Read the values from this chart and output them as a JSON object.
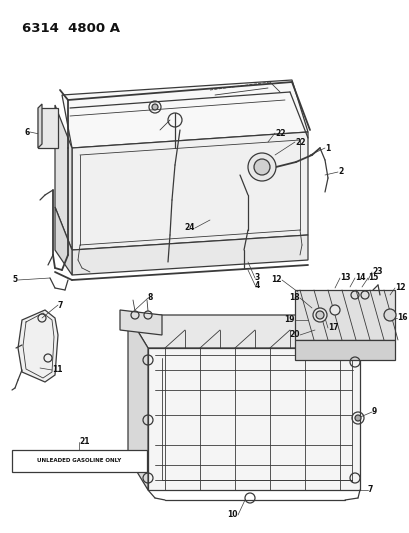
{
  "title": "6314  4800 A",
  "bg": "#ffffff",
  "lc": "#3a3a3a",
  "tc": "#111111",
  "label_text": "UNLEADED GASOLINE ONLY",
  "fig_width": 4.1,
  "fig_height": 5.33,
  "dpi": 100
}
